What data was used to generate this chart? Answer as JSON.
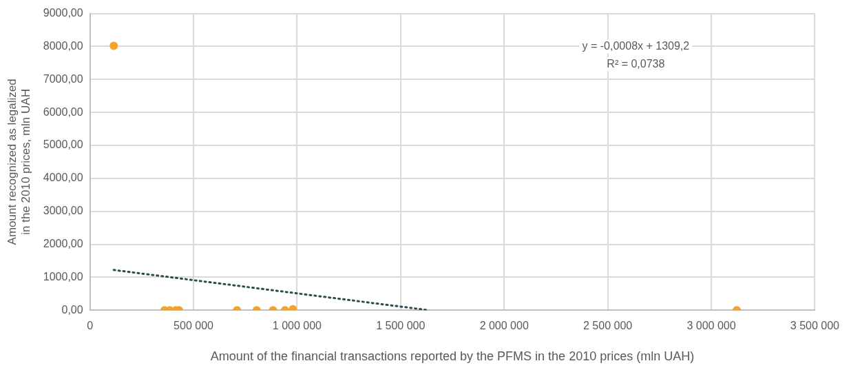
{
  "chart_data": {
    "type": "scatter",
    "xlabel": "Amount of the financial transactions reported by the PFMS in the 2010 prices (mln UAH)",
    "ylabel": "Amount recognized as legalized in the 2010 prices, mln UAH",
    "series": [
      {
        "color": "#f4a326",
        "x": [
          115000,
          360000,
          385000,
          415000,
          430000,
          710000,
          805000,
          884000,
          942000,
          980000,
          3123000
        ],
        "values": [
          8020,
          0,
          0,
          0,
          0,
          0,
          0,
          0,
          0,
          30,
          0
        ]
      },
      {
        "type": "line",
        "color": "#2e4b52",
        "line_style": "dotted",
        "marker": "none",
        "x": [
          115000,
          1636500
        ],
        "values": [
          1220,
          0
        ]
      }
    ],
    "xlim": [
      0,
      3500000
    ],
    "xticks": [
      {
        "value": 0,
        "label": "0"
      },
      {
        "value": 500000,
        "label": "500 000"
      },
      {
        "value": 1000000,
        "label": "1 000 000"
      },
      {
        "value": 1500000,
        "label": "1 500 000"
      },
      {
        "value": 2000000,
        "label": "2 000 000"
      },
      {
        "value": 2500000,
        "label": "2 500 000"
      },
      {
        "value": 3000000,
        "label": "3 000 000"
      },
      {
        "value": 3500000,
        "label": "3 500 000"
      }
    ],
    "ylim": [
      0,
      9000
    ],
    "yticks": [
      {
        "value": 0,
        "label": "0,00"
      },
      {
        "value": 1000,
        "label": "1000,00"
      },
      {
        "value": 2000,
        "label": "2000,00"
      },
      {
        "value": 3000,
        "label": "3000,00"
      },
      {
        "value": 4000,
        "label": "4000,00"
      },
      {
        "value": 5000,
        "label": "5000,00"
      },
      {
        "value": 6000,
        "label": "6000,00"
      },
      {
        "value": 7000,
        "label": "7000,00"
      },
      {
        "value": 8000,
        "label": "8000,00"
      },
      {
        "value": 9000,
        "label": "9000,00"
      }
    ],
    "annotations": [
      "y = -0,0008x + 1309,2",
      "R² = 0,0738"
    ],
    "grid": true,
    "legend": false,
    "marker": "circle"
  }
}
